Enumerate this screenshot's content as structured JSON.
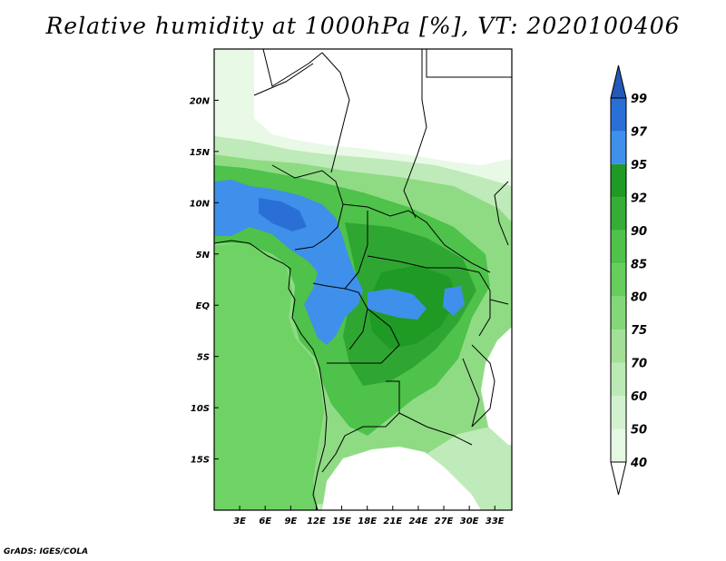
{
  "title": "Relative humidity at 1000hPa [%], VT: 2020100406",
  "credit": "GrADS: IGES/COLA",
  "map": {
    "lon_range": [
      0,
      35
    ],
    "lat_range": [
      -20,
      25
    ],
    "x_ticks": [
      {
        "value": 3,
        "label": "3E"
      },
      {
        "value": 6,
        "label": "6E"
      },
      {
        "value": 9,
        "label": "9E"
      },
      {
        "value": 12,
        "label": "12E"
      },
      {
        "value": 15,
        "label": "15E"
      },
      {
        "value": 18,
        "label": "18E"
      },
      {
        "value": 21,
        "label": "21E"
      },
      {
        "value": 24,
        "label": "24E"
      },
      {
        "value": 27,
        "label": "27E"
      },
      {
        "value": 30,
        "label": "30E"
      },
      {
        "value": 33,
        "label": "33E"
      }
    ],
    "y_ticks": [
      {
        "value": 20,
        "label": "20N"
      },
      {
        "value": 15,
        "label": "15N"
      },
      {
        "value": 10,
        "label": "10N"
      },
      {
        "value": 5,
        "label": "5N"
      },
      {
        "value": 0,
        "label": "EQ"
      },
      {
        "value": -5,
        "label": "5S"
      },
      {
        "value": -10,
        "label": "10S"
      },
      {
        "value": -15,
        "label": "15S"
      }
    ]
  },
  "colorbar": {
    "levels": [
      {
        "label": "40",
        "color": "#e5f8e3"
      },
      {
        "label": "50",
        "color": "#d2f2cf"
      },
      {
        "label": "60",
        "color": "#bceab5"
      },
      {
        "label": "70",
        "color": "#a1e096"
      },
      {
        "label": "75",
        "color": "#84d779"
      },
      {
        "label": "80",
        "color": "#66ce5c"
      },
      {
        "label": "85",
        "color": "#4ec24a"
      },
      {
        "label": "90",
        "color": "#35ad36"
      },
      {
        "label": "92",
        "color": "#1f9a25"
      },
      {
        "label": "95",
        "color": "#3f90ea"
      },
      {
        "label": "97",
        "color": "#2a6fd6"
      },
      {
        "label": "99",
        "color": ""
      }
    ],
    "below_color": "#ffffff",
    "above_color": "#2558b8"
  }
}
